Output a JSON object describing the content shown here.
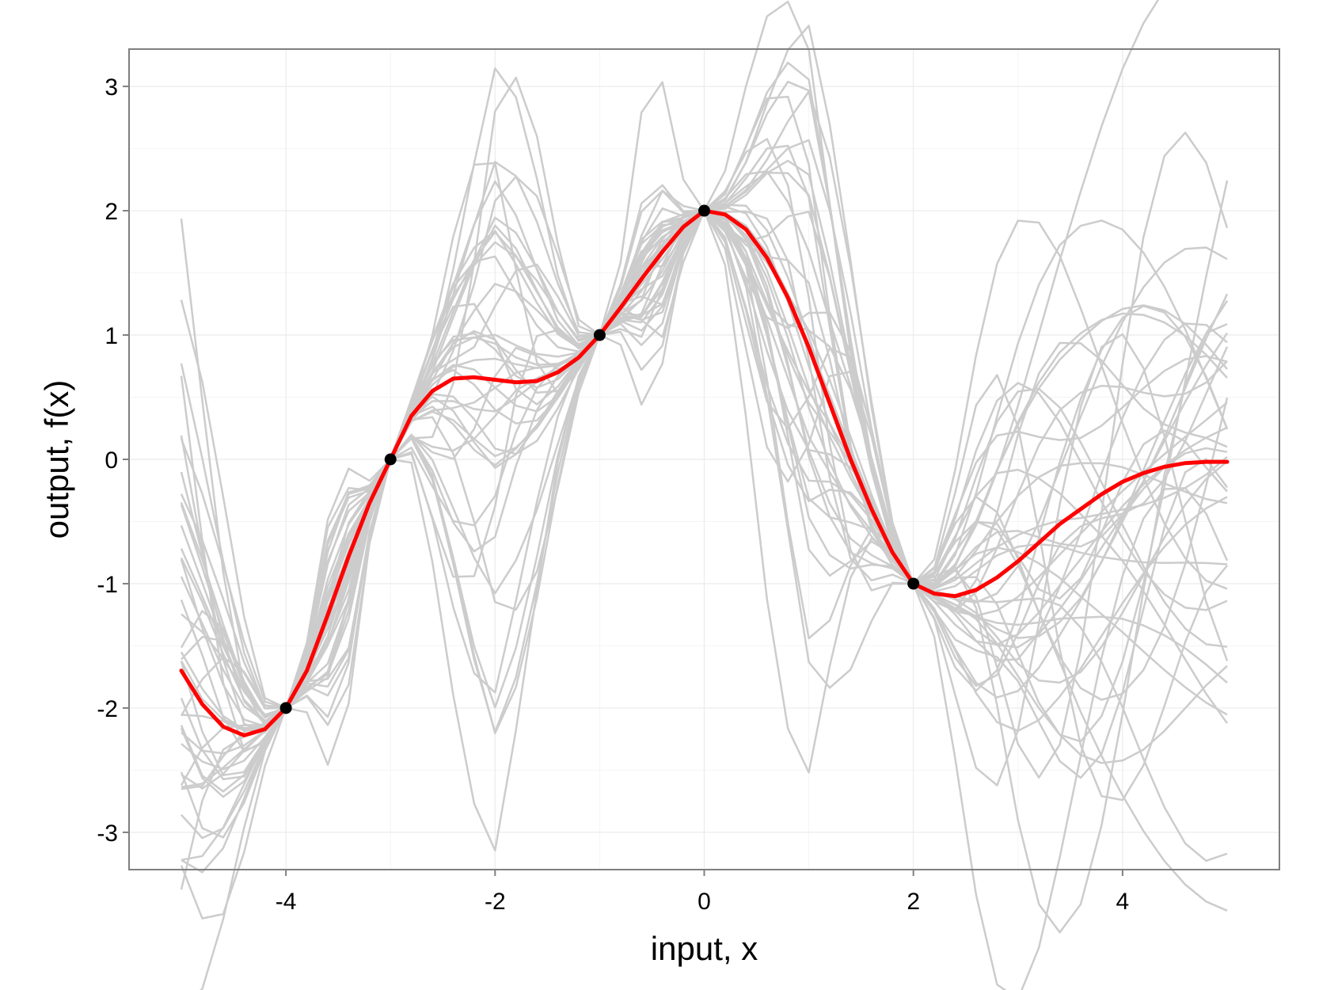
{
  "chart_data": {
    "type": "line",
    "title": "",
    "xlabel": "input, x",
    "ylabel": "output, f(x)",
    "xlim": [
      -5.5,
      5.5
    ],
    "ylim": [
      -3.3,
      3.3
    ],
    "x_ticks": [
      -4,
      -2,
      0,
      2,
      4
    ],
    "y_ticks": [
      -3,
      -2,
      -1,
      0,
      1,
      2,
      3
    ],
    "x_tick_labels": [
      "-4",
      "-2",
      "0",
      "2",
      "4"
    ],
    "y_tick_labels": [
      "-3",
      "-2",
      "-1",
      "0",
      "1",
      "2",
      "3"
    ],
    "grid": true,
    "colors": {
      "mean": "#ff0000",
      "samples": "#cccccc",
      "points": "#000000",
      "grid": "#ebebeb",
      "frame": "#7f7f7f"
    },
    "observations": {
      "x": [
        -4,
        -3,
        -1,
        0,
        2
      ],
      "y": [
        -2,
        0,
        1,
        2,
        -1
      ]
    },
    "mean": {
      "x": [
        -5,
        -4.8,
        -4.6,
        -4.4,
        -4.2,
        -4,
        -3.8,
        -3.6,
        -3.4,
        -3.2,
        -3,
        -2.8,
        -2.6,
        -2.4,
        -2.2,
        -2,
        -1.8,
        -1.6,
        -1.4,
        -1.2,
        -1,
        -0.8,
        -0.6,
        -0.4,
        -0.2,
        0,
        0.2,
        0.4,
        0.6,
        0.8,
        1,
        1.2,
        1.4,
        1.6,
        1.8,
        2,
        2.2,
        2.4,
        2.6,
        2.8,
        3,
        3.2,
        3.4,
        3.6,
        3.8,
        4,
        4.2,
        4.4,
        4.6,
        4.8,
        5
      ],
      "y": [
        -1.7,
        -1.97,
        -2.15,
        -2.22,
        -2.17,
        -2.0,
        -1.7,
        -1.25,
        -0.78,
        -0.35,
        0.0,
        0.35,
        0.55,
        0.65,
        0.66,
        0.64,
        0.62,
        0.63,
        0.7,
        0.82,
        1.0,
        1.22,
        1.45,
        1.67,
        1.87,
        2.0,
        1.97,
        1.85,
        1.62,
        1.3,
        0.9,
        0.45,
        0.0,
        -0.4,
        -0.75,
        -1.0,
        -1.08,
        -1.1,
        -1.05,
        -0.95,
        -0.82,
        -0.67,
        -0.52,
        -0.4,
        -0.28,
        -0.18,
        -0.11,
        -0.06,
        -0.03,
        -0.02,
        -0.02
      ]
    },
    "samples": {
      "count": 40,
      "x": [
        -5,
        -4.8,
        -4.6,
        -4.4,
        -4.2,
        -4,
        -3.8,
        -3.6,
        -3.4,
        -3.2,
        -3,
        -2.8,
        -2.6,
        -2.4,
        -2.2,
        -2,
        -1.8,
        -1.6,
        -1.4,
        -1.2,
        -1,
        -0.8,
        -0.6,
        -0.4,
        -0.2,
        0,
        0.2,
        0.4,
        0.6,
        0.8,
        1,
        1.2,
        1.4,
        1.6,
        1.8,
        2,
        2.2,
        2.4,
        2.6,
        2.8,
        3,
        3.2,
        3.4,
        3.6,
        3.8,
        4,
        4.2,
        4.4,
        4.6,
        4.8,
        5
      ]
    }
  }
}
